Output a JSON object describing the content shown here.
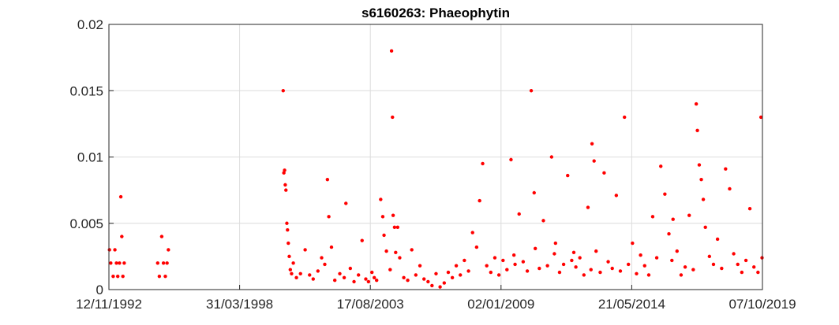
{
  "chart_data": {
    "type": "scatter",
    "title": "s6160263: Phaeophytin",
    "xlabel": "",
    "ylabel": "",
    "x_axis_type": "date",
    "xlim": [
      "1992-11-12",
      "2019-10-07"
    ],
    "ylim": [
      0,
      0.02
    ],
    "x_ticks": [
      "1992-11-12",
      "1998-03-31",
      "2003-08-17",
      "2009-01-02",
      "2014-05-21",
      "2019-10-07"
    ],
    "x_tick_labels": [
      "12/11/1992",
      "31/03/1998",
      "17/08/2003",
      "02/01/2009",
      "21/05/2014",
      "07/10/2019"
    ],
    "y_ticks": [
      0,
      0.005,
      0.01,
      0.015,
      0.02
    ],
    "y_tick_labels": [
      "0",
      "0.005",
      "0.01",
      "0.015",
      "0.02"
    ],
    "grid": true,
    "marker_color": "#ff0000",
    "series": [
      {
        "points": [
          [
            "1992-11-20",
            0.003
          ],
          [
            "1992-12-10",
            0.002
          ],
          [
            "1993-01-15",
            0.001
          ],
          [
            "1993-02-10",
            0.003
          ],
          [
            "1993-03-05",
            0.002
          ],
          [
            "1993-03-25",
            0.001
          ],
          [
            "1993-04-20",
            0.002
          ],
          [
            "1993-05-10",
            0.007
          ],
          [
            "1993-05-25",
            0.004
          ],
          [
            "1993-06-10",
            0.001
          ],
          [
            "1993-06-30",
            0.002
          ],
          [
            "1994-11-15",
            0.002
          ],
          [
            "1994-12-10",
            0.001
          ],
          [
            "1995-01-15",
            0.004
          ],
          [
            "1995-02-10",
            0.002
          ],
          [
            "1995-03-10",
            0.001
          ],
          [
            "1995-04-05",
            0.002
          ],
          [
            "1995-04-25",
            0.003
          ],
          [
            "2000-01-15",
            0.015
          ],
          [
            "2000-01-25",
            0.0088
          ],
          [
            "2000-02-05",
            0.009
          ],
          [
            "2000-02-15",
            0.0079
          ],
          [
            "2000-02-25",
            0.0075
          ],
          [
            "2000-03-10",
            0.005
          ],
          [
            "2000-03-20",
            0.0045
          ],
          [
            "2000-04-01",
            0.0035
          ],
          [
            "2000-04-15",
            0.0025
          ],
          [
            "2000-05-01",
            0.0015
          ],
          [
            "2000-05-20",
            0.0012
          ],
          [
            "2000-06-15",
            0.002
          ],
          [
            "2000-08-01",
            0.0009
          ],
          [
            "2000-10-01",
            0.0012
          ],
          [
            "2000-12-10",
            0.003
          ],
          [
            "2001-02-15",
            0.0011
          ],
          [
            "2001-04-10",
            0.0008
          ],
          [
            "2001-06-20",
            0.0014
          ],
          [
            "2001-08-15",
            0.0024
          ],
          [
            "2001-10-01",
            0.0019
          ],
          [
            "2001-11-10",
            0.0083
          ],
          [
            "2001-12-01",
            0.0055
          ],
          [
            "2002-01-10",
            0.0032
          ],
          [
            "2002-03-01",
            0.0007
          ],
          [
            "2002-05-15",
            0.0012
          ],
          [
            "2002-07-20",
            0.0009
          ],
          [
            "2002-08-15",
            0.0065
          ],
          [
            "2002-10-20",
            0.0016
          ],
          [
            "2002-12-15",
            0.0006
          ],
          [
            "2003-02-20",
            0.0011
          ],
          [
            "2003-04-15",
            0.0037
          ],
          [
            "2003-06-10",
            0.0008
          ],
          [
            "2003-07-20",
            0.0006
          ],
          [
            "2003-09-10",
            0.0013
          ],
          [
            "2003-10-15",
            0.0009
          ],
          [
            "2003-11-20",
            0.0007
          ],
          [
            "2004-01-20",
            0.0068
          ],
          [
            "2004-02-20",
            0.0055
          ],
          [
            "2004-03-10",
            0.0041
          ],
          [
            "2004-04-15",
            0.0029
          ],
          [
            "2004-06-10",
            0.0015
          ],
          [
            "2004-07-01",
            0.018
          ],
          [
            "2004-07-15",
            0.013
          ],
          [
            "2004-07-25",
            0.0056
          ],
          [
            "2004-08-15",
            0.0047
          ],
          [
            "2004-09-01",
            0.0028
          ],
          [
            "2004-10-01",
            0.0047
          ],
          [
            "2004-11-01",
            0.0024
          ],
          [
            "2005-01-01",
            0.0009
          ],
          [
            "2005-03-01",
            0.0007
          ],
          [
            "2005-05-01",
            0.003
          ],
          [
            "2005-07-01",
            0.0011
          ],
          [
            "2005-09-01",
            0.0018
          ],
          [
            "2005-11-01",
            0.0008
          ],
          [
            "2006-01-01",
            0.0006
          ],
          [
            "2006-03-01",
            0.0003
          ],
          [
            "2006-05-01",
            0.0012
          ],
          [
            "2006-07-01",
            0.0002
          ],
          [
            "2006-09-01",
            0.0005
          ],
          [
            "2006-11-01",
            0.0013
          ],
          [
            "2007-01-01",
            0.0009
          ],
          [
            "2007-03-01",
            0.0018
          ],
          [
            "2007-05-01",
            0.0011
          ],
          [
            "2007-07-01",
            0.0022
          ],
          [
            "2007-09-01",
            0.0014
          ],
          [
            "2007-11-01",
            0.0043
          ],
          [
            "2008-01-01",
            0.0032
          ],
          [
            "2008-02-15",
            0.0067
          ],
          [
            "2008-04-01",
            0.0095
          ],
          [
            "2008-06-01",
            0.0018
          ],
          [
            "2008-08-01",
            0.0013
          ],
          [
            "2008-10-01",
            0.0024
          ],
          [
            "2008-12-01",
            0.0011
          ],
          [
            "2009-02-01",
            0.0022
          ],
          [
            "2009-04-01",
            0.0015
          ],
          [
            "2009-06-01",
            0.0098
          ],
          [
            "2009-07-15",
            0.0026
          ],
          [
            "2009-08-01",
            0.0019
          ],
          [
            "2009-10-01",
            0.0057
          ],
          [
            "2009-12-01",
            0.0021
          ],
          [
            "2010-02-01",
            0.0014
          ],
          [
            "2010-04-01",
            0.015
          ],
          [
            "2010-05-15",
            0.0073
          ],
          [
            "2010-06-01",
            0.0031
          ],
          [
            "2010-08-01",
            0.0016
          ],
          [
            "2010-10-01",
            0.0052
          ],
          [
            "2010-12-01",
            0.0018
          ],
          [
            "2011-02-01",
            0.01
          ],
          [
            "2011-03-15",
            0.0027
          ],
          [
            "2011-04-01",
            0.0035
          ],
          [
            "2011-06-01",
            0.0013
          ],
          [
            "2011-08-01",
            0.0019
          ],
          [
            "2011-10-01",
            0.0086
          ],
          [
            "2011-12-01",
            0.0022
          ],
          [
            "2012-01-01",
            0.0028
          ],
          [
            "2012-02-01",
            0.0017
          ],
          [
            "2012-04-01",
            0.0024
          ],
          [
            "2012-06-01",
            0.0011
          ],
          [
            "2012-08-01",
            0.0062
          ],
          [
            "2012-09-15",
            0.0015
          ],
          [
            "2012-10-01",
            0.011
          ],
          [
            "2012-11-01",
            0.0097
          ],
          [
            "2012-12-01",
            0.0029
          ],
          [
            "2013-02-01",
            0.0013
          ],
          [
            "2013-04-01",
            0.0088
          ],
          [
            "2013-06-01",
            0.0021
          ],
          [
            "2013-08-01",
            0.0016
          ],
          [
            "2013-10-01",
            0.0071
          ],
          [
            "2013-12-01",
            0.0014
          ],
          [
            "2014-02-01",
            0.013
          ],
          [
            "2014-04-01",
            0.0019
          ],
          [
            "2014-06-01",
            0.0035
          ],
          [
            "2014-08-01",
            0.0012
          ],
          [
            "2014-10-01",
            0.0026
          ],
          [
            "2014-12-01",
            0.0018
          ],
          [
            "2015-02-01",
            0.0011
          ],
          [
            "2015-04-01",
            0.0055
          ],
          [
            "2015-06-01",
            0.0024
          ],
          [
            "2015-08-01",
            0.0093
          ],
          [
            "2015-10-01",
            0.0072
          ],
          [
            "2015-12-01",
            0.0042
          ],
          [
            "2016-01-15",
            0.0022
          ],
          [
            "2016-02-01",
            0.0053
          ],
          [
            "2016-04-01",
            0.0029
          ],
          [
            "2016-06-01",
            0.0011
          ],
          [
            "2016-08-01",
            0.0017
          ],
          [
            "2016-10-01",
            0.0056
          ],
          [
            "2016-12-01",
            0.0015
          ],
          [
            "2017-01-15",
            0.014
          ],
          [
            "2017-02-01",
            0.012
          ],
          [
            "2017-03-01",
            0.0094
          ],
          [
            "2017-04-01",
            0.0083
          ],
          [
            "2017-05-01",
            0.0068
          ],
          [
            "2017-06-01",
            0.0047
          ],
          [
            "2017-08-01",
            0.0025
          ],
          [
            "2017-10-01",
            0.0019
          ],
          [
            "2017-12-01",
            0.0038
          ],
          [
            "2018-02-01",
            0.0016
          ],
          [
            "2018-04-01",
            0.0091
          ],
          [
            "2018-06-01",
            0.0076
          ],
          [
            "2018-08-01",
            0.0027
          ],
          [
            "2018-10-01",
            0.0019
          ],
          [
            "2018-12-01",
            0.0013
          ],
          [
            "2019-02-01",
            0.0022
          ],
          [
            "2019-04-01",
            0.0061
          ],
          [
            "2019-06-01",
            0.0017
          ],
          [
            "2019-08-01",
            0.0013
          ],
          [
            "2019-09-15",
            0.013
          ],
          [
            "2019-10-01",
            0.0024
          ]
        ]
      }
    ]
  }
}
